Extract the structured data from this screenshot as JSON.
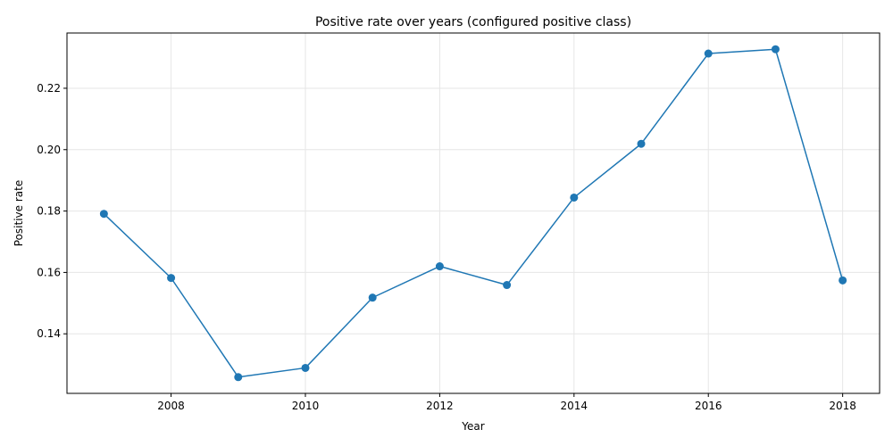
{
  "chart_data": {
    "type": "line",
    "title": "Positive rate over years (configured positive class)",
    "xlabel": "Year",
    "ylabel": "Positive rate",
    "x": [
      2007,
      2008,
      2009,
      2010,
      2011,
      2012,
      2013,
      2014,
      2015,
      2016,
      2017,
      2018
    ],
    "series": [
      {
        "values": [
          0.1791,
          0.1582,
          0.1259,
          0.1289,
          0.1518,
          0.162,
          0.1559,
          0.1844,
          0.2019,
          0.2313,
          0.2327,
          0.1574
        ],
        "color": "#1f77b4",
        "marker": "circle"
      }
    ],
    "xlim": [
      2006.45,
      2018.55
    ],
    "ylim": [
      0.1206,
      0.238
    ],
    "xticks": [
      "2008",
      "2010",
      "2012",
      "2014",
      "2016",
      "2018"
    ],
    "yticks": [
      "0.14",
      "0.16",
      "0.18",
      "0.20",
      "0.22"
    ],
    "grid": true,
    "colors": {
      "line": "#1f77b4",
      "grid": "#e6e6e6",
      "axis": "#000000"
    }
  }
}
